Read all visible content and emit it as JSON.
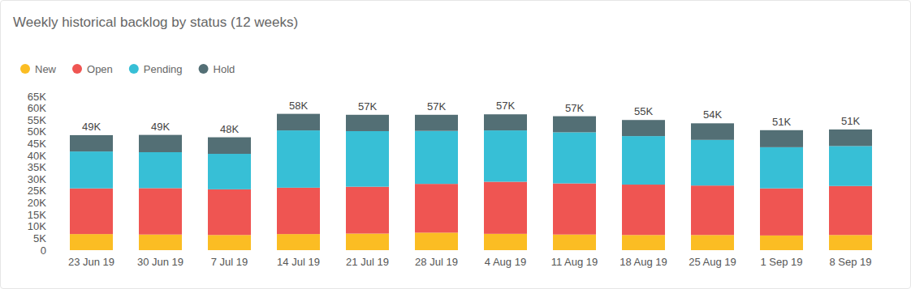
{
  "chart_data": {
    "type": "bar",
    "title": "Weekly historical backlog by status (12 weeks)",
    "stacked": true,
    "grid": false,
    "legend": "top-left",
    "categories": [
      "23 Jun 19",
      "30 Jun 19",
      "7 Jul 19",
      "14 Jul 19",
      "21 Jul 19",
      "28 Jul 19",
      "4 Aug 19",
      "11 Aug 19",
      "18 Aug 19",
      "25 Aug 19",
      "1 Sep 19",
      "8 Sep 19"
    ],
    "series": [
      {
        "name": "New",
        "color": "#fbbd23",
        "values": [
          6800,
          6600,
          6400,
          6800,
          7000,
          7400,
          6900,
          6600,
          6400,
          6400,
          6200,
          6400
        ]
      },
      {
        "name": "Open",
        "color": "#ef5552",
        "values": [
          19300,
          19600,
          19300,
          19600,
          19800,
          20600,
          22000,
          21600,
          21300,
          20900,
          19900,
          20700
        ]
      },
      {
        "name": "Pending",
        "color": "#37bfd6",
        "values": [
          15600,
          15200,
          15000,
          24200,
          23500,
          22400,
          21700,
          21600,
          20500,
          19300,
          17400,
          16900
        ]
      },
      {
        "name": "Hold",
        "color": "#536f75",
        "values": [
          6900,
          7300,
          7000,
          7000,
          6900,
          6800,
          6800,
          6800,
          6800,
          7000,
          7200,
          7000
        ]
      }
    ],
    "totals": {
      "values": [
        48600,
        48700,
        47700,
        57600,
        57200,
        57200,
        57400,
        56600,
        55000,
        53600,
        50700,
        51000
      ],
      "value_labels": [
        "49K",
        "49K",
        "48K",
        "58K",
        "57K",
        "57K",
        "57K",
        "57K",
        "55K",
        "54K",
        "51K",
        "51K"
      ]
    },
    "ylim": [
      0,
      65000
    ],
    "yticks": [
      0,
      {
        "value": 5000,
        "label": "5K"
      },
      {
        "value": 10000,
        "label": "10K"
      },
      {
        "value": 15000,
        "label": "15K"
      },
      {
        "value": 20000,
        "label": "20K"
      },
      {
        "value": 25000,
        "label": "25K"
      },
      {
        "value": 30000,
        "label": "30K"
      },
      {
        "value": 35000,
        "label": "35K"
      },
      {
        "value": 40000,
        "label": "40K"
      },
      {
        "value": 45000,
        "label": "45K"
      },
      {
        "value": 50000,
        "label": "50K"
      },
      {
        "value": 55000,
        "label": "55K"
      },
      {
        "value": 60000,
        "label": "60K"
      },
      {
        "value": 65000,
        "label": "65K"
      }
    ]
  }
}
